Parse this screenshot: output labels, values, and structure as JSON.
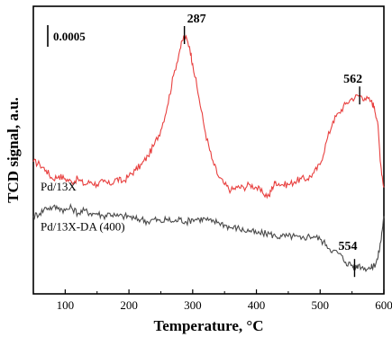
{
  "chart_data": {
    "type": "line",
    "title": "",
    "xlabel": "Temperature, °C",
    "ylabel": "TCD signal, a.u.",
    "xlim": [
      50,
      600
    ],
    "ylim": [
      0,
      1
    ],
    "xticks": [
      100,
      200,
      300,
      400,
      500,
      600
    ],
    "grid": false,
    "scale_bar_label": "0.0005",
    "series": [
      {
        "name": "Pd/13X",
        "color": "#e8403f",
        "points": [
          [
            50,
            0.46
          ],
          [
            60,
            0.45
          ],
          [
            70,
            0.43
          ],
          [
            80,
            0.4
          ],
          [
            90,
            0.41
          ],
          [
            100,
            0.4
          ],
          [
            110,
            0.39
          ],
          [
            120,
            0.4
          ],
          [
            130,
            0.38
          ],
          [
            140,
            0.39
          ],
          [
            150,
            0.38
          ],
          [
            160,
            0.39
          ],
          [
            170,
            0.38
          ],
          [
            180,
            0.4
          ],
          [
            190,
            0.39
          ],
          [
            200,
            0.41
          ],
          [
            210,
            0.43
          ],
          [
            220,
            0.45
          ],
          [
            230,
            0.48
          ],
          [
            240,
            0.52
          ],
          [
            250,
            0.57
          ],
          [
            260,
            0.65
          ],
          [
            270,
            0.76
          ],
          [
            280,
            0.85
          ],
          [
            287,
            0.9
          ],
          [
            295,
            0.86
          ],
          [
            300,
            0.8
          ],
          [
            310,
            0.68
          ],
          [
            320,
            0.56
          ],
          [
            330,
            0.47
          ],
          [
            340,
            0.41
          ],
          [
            350,
            0.38
          ],
          [
            360,
            0.36
          ],
          [
            370,
            0.37
          ],
          [
            380,
            0.37
          ],
          [
            390,
            0.38
          ],
          [
            400,
            0.37
          ],
          [
            410,
            0.35
          ],
          [
            420,
            0.34
          ],
          [
            425,
            0.37
          ],
          [
            430,
            0.39
          ],
          [
            440,
            0.38
          ],
          [
            450,
            0.38
          ],
          [
            460,
            0.39
          ],
          [
            470,
            0.4
          ],
          [
            480,
            0.4
          ],
          [
            490,
            0.42
          ],
          [
            500,
            0.45
          ],
          [
            510,
            0.53
          ],
          [
            520,
            0.6
          ],
          [
            530,
            0.63
          ],
          [
            540,
            0.66
          ],
          [
            550,
            0.68
          ],
          [
            562,
            0.69
          ],
          [
            570,
            0.68
          ],
          [
            580,
            0.67
          ],
          [
            585,
            0.65
          ],
          [
            590,
            0.6
          ],
          [
            595,
            0.45
          ],
          [
            600,
            0.37
          ]
        ]
      },
      {
        "name": "Pd/13X-DA (400)",
        "color": "#4a4a4a",
        "points": [
          [
            50,
            0.27
          ],
          [
            60,
            0.28
          ],
          [
            70,
            0.3
          ],
          [
            80,
            0.3
          ],
          [
            90,
            0.3
          ],
          [
            100,
            0.29
          ],
          [
            110,
            0.3
          ],
          [
            120,
            0.28
          ],
          [
            130,
            0.29
          ],
          [
            140,
            0.28
          ],
          [
            150,
            0.28
          ],
          [
            160,
            0.27
          ],
          [
            170,
            0.28
          ],
          [
            180,
            0.27
          ],
          [
            190,
            0.27
          ],
          [
            200,
            0.27
          ],
          [
            210,
            0.26
          ],
          [
            220,
            0.26
          ],
          [
            230,
            0.25
          ],
          [
            240,
            0.26
          ],
          [
            250,
            0.25
          ],
          [
            260,
            0.26
          ],
          [
            270,
            0.25
          ],
          [
            280,
            0.26
          ],
          [
            290,
            0.25
          ],
          [
            300,
            0.26
          ],
          [
            310,
            0.26
          ],
          [
            320,
            0.26
          ],
          [
            330,
            0.25
          ],
          [
            340,
            0.25
          ],
          [
            350,
            0.24
          ],
          [
            360,
            0.23
          ],
          [
            370,
            0.23
          ],
          [
            380,
            0.22
          ],
          [
            390,
            0.22
          ],
          [
            400,
            0.21
          ],
          [
            410,
            0.21
          ],
          [
            420,
            0.21
          ],
          [
            430,
            0.2
          ],
          [
            440,
            0.2
          ],
          [
            450,
            0.2
          ],
          [
            460,
            0.2
          ],
          [
            470,
            0.19
          ],
          [
            480,
            0.2
          ],
          [
            490,
            0.2
          ],
          [
            500,
            0.19
          ],
          [
            510,
            0.17
          ],
          [
            520,
            0.15
          ],
          [
            530,
            0.14
          ],
          [
            540,
            0.11
          ],
          [
            550,
            0.1
          ],
          [
            554,
            0.09
          ],
          [
            560,
            0.1
          ],
          [
            570,
            0.09
          ],
          [
            580,
            0.09
          ],
          [
            585,
            0.1
          ],
          [
            590,
            0.12
          ],
          [
            595,
            0.18
          ],
          [
            600,
            0.27
          ]
        ]
      }
    ],
    "annotations": [
      {
        "text": "287",
        "x": 287,
        "y": 0.9
      },
      {
        "text": "562",
        "x": 562,
        "y": 0.69
      },
      {
        "text": "554",
        "x": 554,
        "y": 0.09
      }
    ]
  }
}
